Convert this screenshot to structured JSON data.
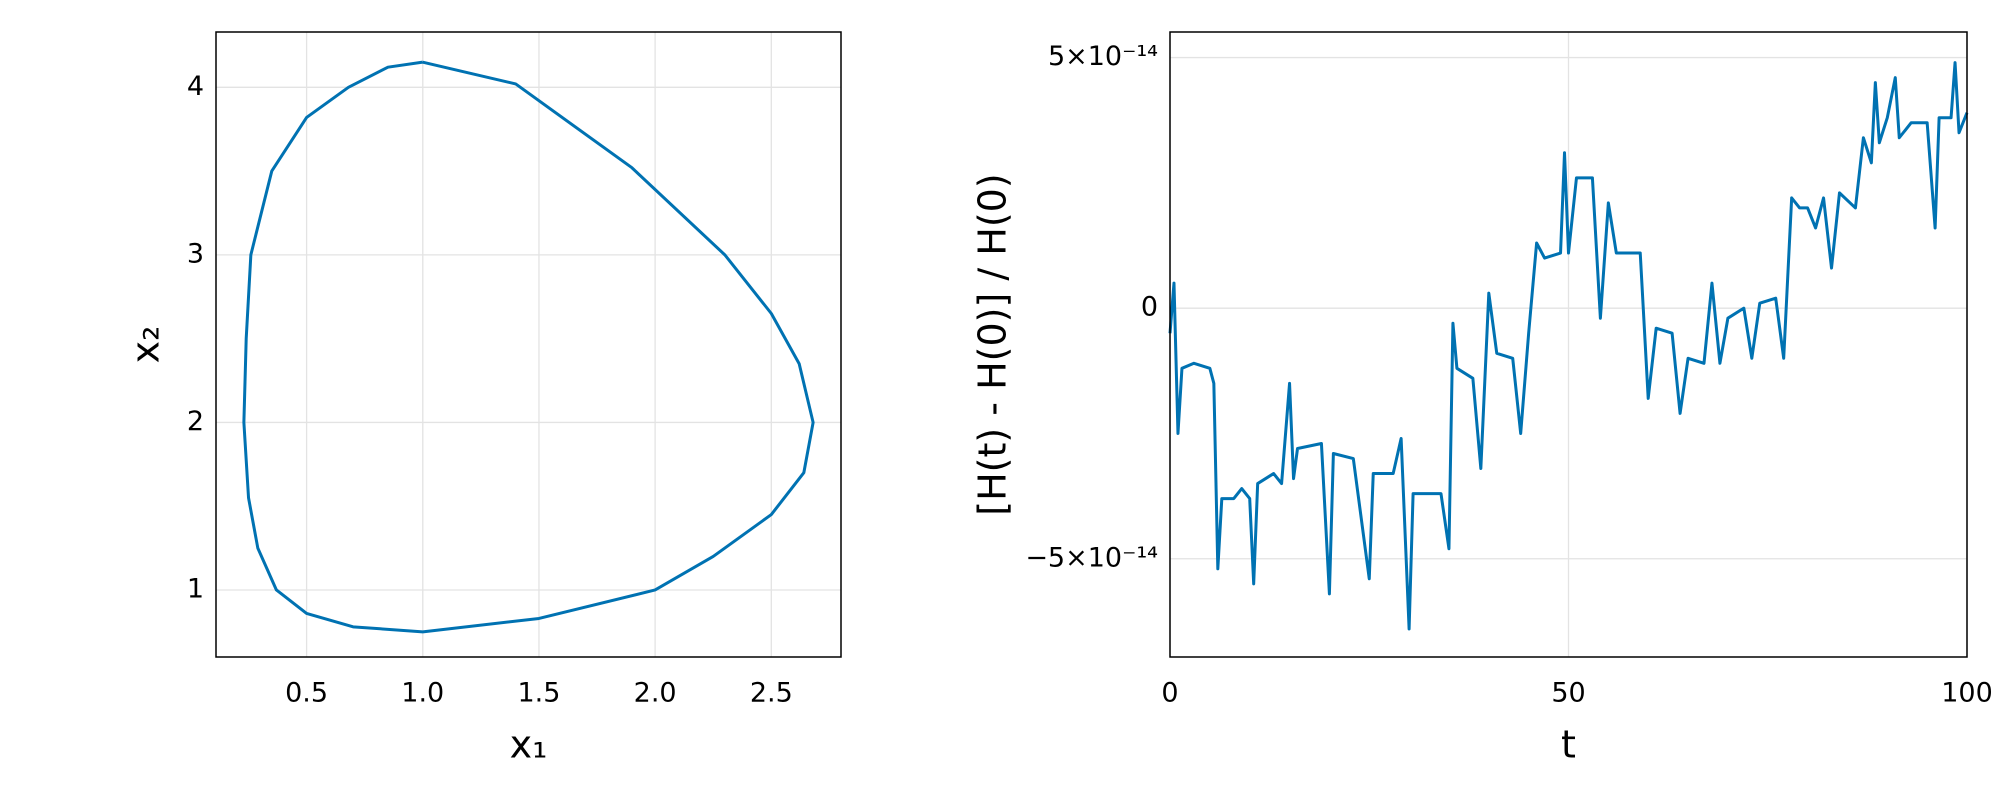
{
  "chart_data": [
    {
      "type": "line",
      "xlabel": "x₁",
      "ylabel": "x₂",
      "x": [
        1.0,
        1.4,
        1.9,
        2.3,
        2.5,
        2.62,
        2.68,
        2.64,
        2.5,
        2.25,
        2.0,
        1.5,
        1.0,
        0.7,
        0.5,
        0.37,
        0.29,
        0.25,
        0.23,
        0.24,
        0.26,
        0.35,
        0.5,
        0.68,
        0.85,
        1.0
      ],
      "series": [
        {
          "color": "#0072b2",
          "values": [
            4.15,
            4.02,
            3.52,
            3.0,
            2.65,
            2.35,
            2.0,
            1.7,
            1.45,
            1.2,
            1.0,
            0.83,
            0.75,
            0.78,
            0.86,
            1.0,
            1.25,
            1.55,
            2.0,
            2.5,
            3.0,
            3.5,
            3.82,
            4.0,
            4.12,
            4.15
          ]
        }
      ],
      "xlim": [
        0.11,
        2.8
      ],
      "ylim": [
        0.6,
        4.33
      ],
      "xticks": [
        0.5,
        {
          "value": 1,
          "label": "1.0"
        },
        1.5,
        {
          "value": 2,
          "label": "2.0"
        },
        2.5
      ],
      "yticks": [
        1,
        2,
        3,
        4
      ],
      "grid": true
    },
    {
      "type": "line",
      "xlabel": "t",
      "ylabel": "[H(t) - H(0)] / H(0)",
      "x": [
        0,
        0.5,
        1,
        1.5,
        3,
        5,
        5.5,
        6,
        6.5,
        8,
        9,
        10,
        10.5,
        11,
        13,
        14,
        15,
        15.5,
        16,
        19,
        20,
        20.5,
        23,
        25,
        25.5,
        28,
        29,
        30,
        30.5,
        34,
        35,
        35.5,
        36,
        38,
        39,
        40,
        41,
        43,
        44,
        45,
        46,
        47,
        49,
        49.5,
        50,
        51,
        53,
        54,
        55,
        56,
        59,
        60,
        61,
        63,
        64,
        65,
        67,
        68,
        69,
        70,
        72,
        73,
        74,
        76,
        77,
        78,
        79,
        80,
        81,
        82,
        83,
        84,
        86,
        87,
        88,
        88.5,
        89,
        90,
        91,
        91.5,
        93,
        95,
        96,
        96.5,
        98,
        98.5,
        99,
        100
      ],
      "series": [
        {
          "color": "#0072b2",
          "values": [
            -5e-15,
            5e-15,
            -2.5e-14,
            -1.2e-14,
            -1.1e-14,
            -1.2e-14,
            -1.5e-14,
            -5.2e-14,
            -3.8e-14,
            -3.8e-14,
            -3.6e-14,
            -3.8e-14,
            -5.5e-14,
            -3.5e-14,
            -3.3e-14,
            -3.5e-14,
            -1.5e-14,
            -3.4e-14,
            -2.8e-14,
            -2.7e-14,
            -5.7e-14,
            -2.9e-14,
            -3e-14,
            -5.4e-14,
            -3.3e-14,
            -3.3e-14,
            -2.6e-14,
            -6.4e-14,
            -3.7e-14,
            -3.7e-14,
            -4.8e-14,
            -3e-15,
            -1.2e-14,
            -1.4e-14,
            -3.2e-14,
            3e-15,
            -9e-15,
            -1e-14,
            -2.5e-14,
            -5e-15,
            1.3e-14,
            1e-14,
            1.1e-14,
            3.1e-14,
            1.1e-14,
            2.6e-14,
            2.6e-14,
            -2e-15,
            2.1e-14,
            1.1e-14,
            1.1e-14,
            -1.8e-14,
            -4e-15,
            -5e-15,
            -2.1e-14,
            -1e-14,
            -1.1e-14,
            5e-15,
            -1.1e-14,
            -2e-15,
            0,
            -1e-14,
            1e-15,
            2e-15,
            -1e-14,
            2.2e-14,
            2e-14,
            2e-14,
            1.6e-14,
            2.2e-14,
            8e-15,
            2.3e-14,
            2e-14,
            3.4e-14,
            2.9e-14,
            4.5e-14,
            3.3e-14,
            3.8e-14,
            4.6e-14,
            3.4e-14,
            3.7e-14,
            3.7e-14,
            1.6e-14,
            3.8e-14,
            3.8e-14,
            4.9e-14,
            3.5e-14,
            3.9e-14
          ]
        }
      ],
      "xlim": [
        0,
        100
      ],
      "ylim": [
        -6.96e-14,
        5.51e-14
      ],
      "xticks": [
        0,
        50,
        100
      ],
      "yticks": [
        {
          "value": -5e-14,
          "label": "−5×10⁻¹⁴"
        },
        0,
        {
          "value": 5e-14,
          "label": "5×10⁻¹⁴"
        }
      ],
      "grid": true
    }
  ]
}
